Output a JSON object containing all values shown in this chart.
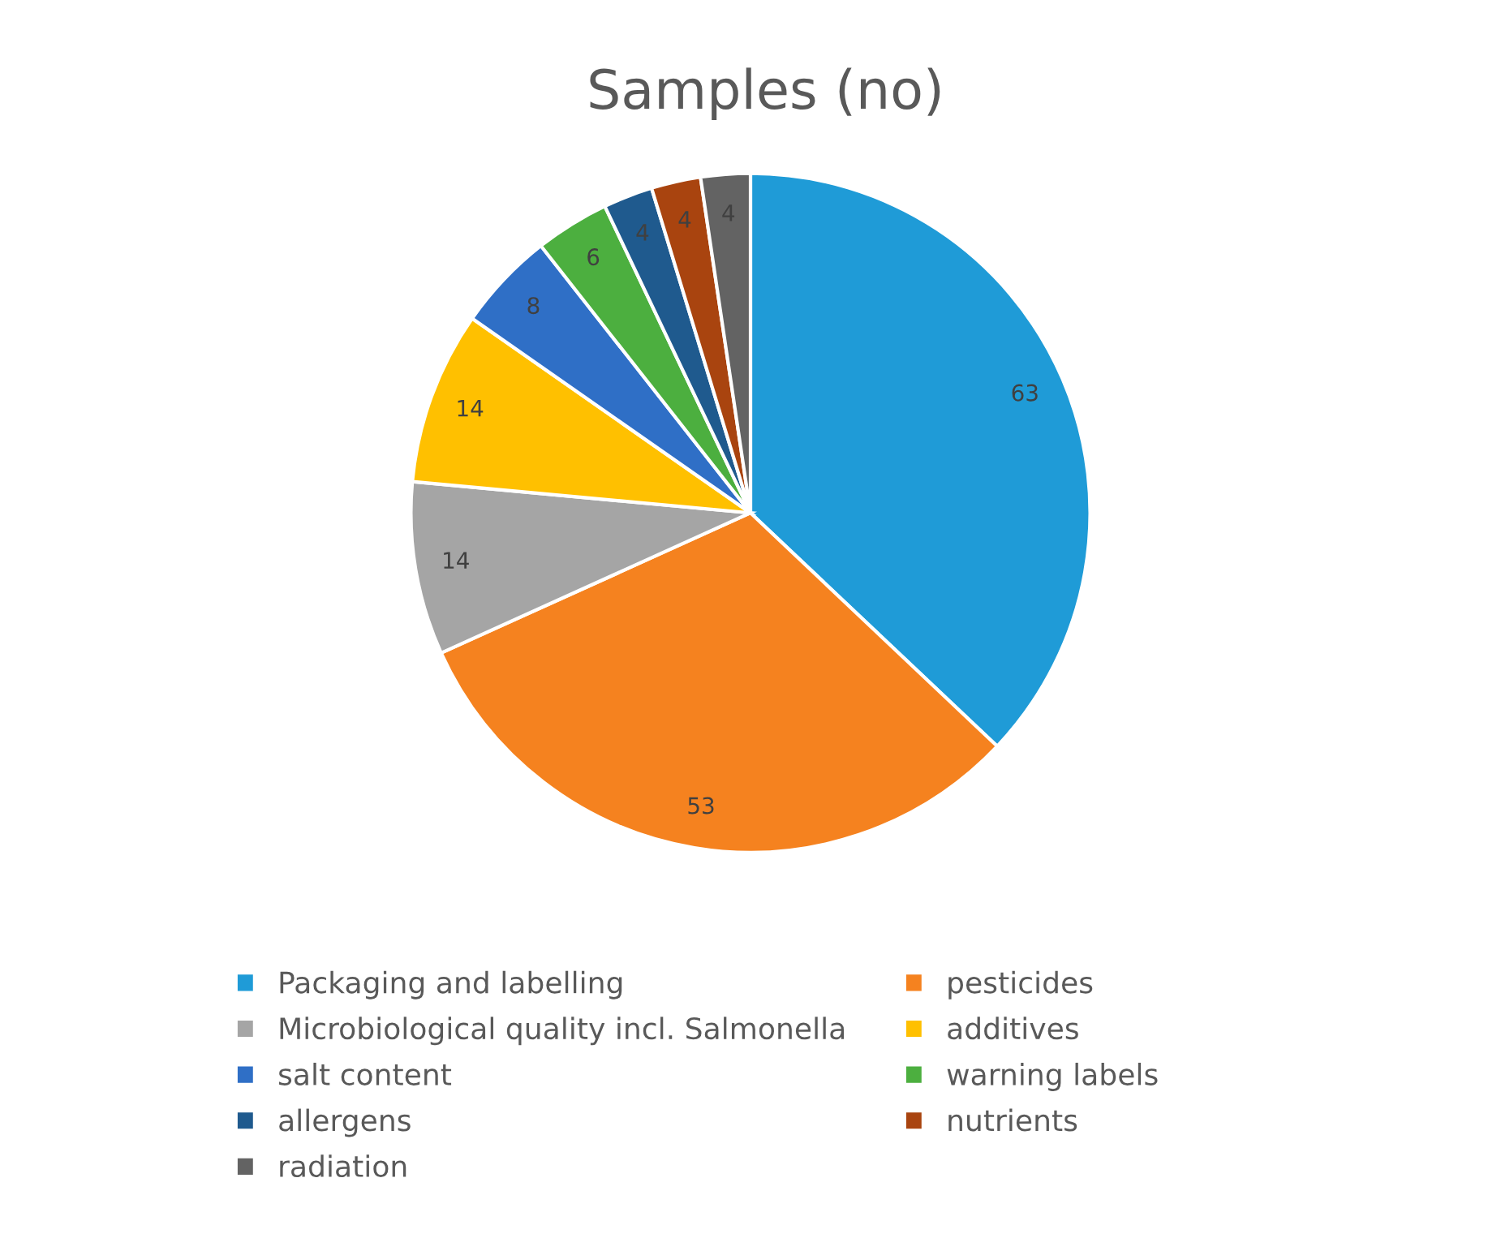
{
  "chart_data": {
    "type": "pie",
    "title": "Samples (no)",
    "categories": [
      "Packaging and labelling",
      "pesticides",
      "Microbiological quality incl. Salmonella",
      "additives",
      "salt content",
      "warning labels",
      "allergens",
      "nutrients",
      "radiation"
    ],
    "values": [
      63,
      53,
      14,
      14,
      8,
      6,
      4,
      4,
      4
    ],
    "colors": [
      "#1f9bd7",
      "#f5821f",
      "#a5a5a5",
      "#ffc000",
      "#2f6fc6",
      "#4caf3f",
      "#1f5a8e",
      "#a9440f",
      "#636363"
    ],
    "data_labels": true,
    "legend": "bottom"
  }
}
